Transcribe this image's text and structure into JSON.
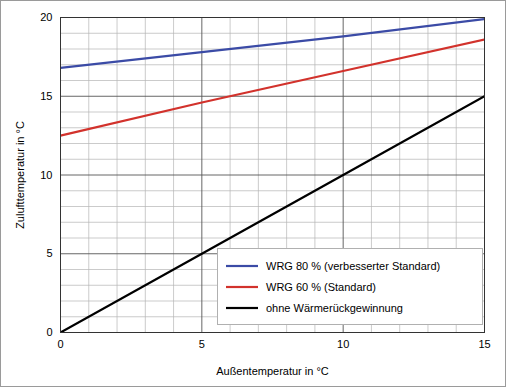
{
  "chart_data": {
    "type": "line",
    "xlabel": "Außentemperatur in °C",
    "ylabel": "Zulufttemperatur in °C",
    "x": [
      0,
      5,
      10,
      15
    ],
    "series": [
      {
        "name": "WRG 80 % (verbesserter Standard)",
        "color": "#3b4ba6",
        "values": [
          16.8,
          17.8,
          18.8,
          19.9
        ]
      },
      {
        "name": "WRG 60 % (Standard)",
        "color": "#d2322c",
        "values": [
          12.5,
          14.6,
          16.6,
          18.6
        ]
      },
      {
        "name": "ohne Wärmerückgewinnung",
        "color": "#000000",
        "values": [
          0,
          5,
          10,
          15
        ]
      }
    ],
    "xlim": [
      0,
      15
    ],
    "ylim": [
      0,
      20
    ],
    "xticks": [
      0,
      5,
      10,
      15
    ],
    "yticks": [
      0,
      5,
      10,
      15,
      20
    ],
    "grid": true,
    "legend": "lower right"
  }
}
